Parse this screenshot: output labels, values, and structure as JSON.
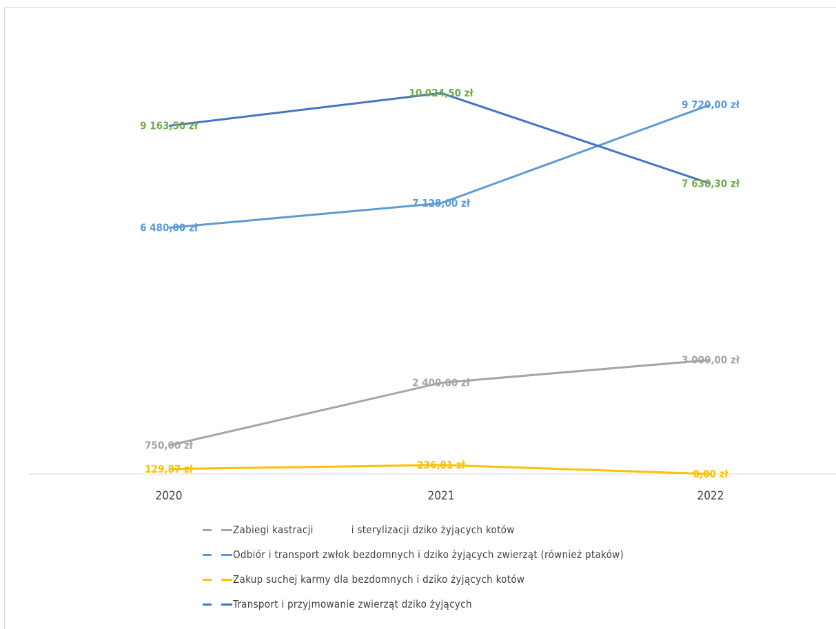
{
  "chart_data": {
    "type": "line",
    "categories": [
      "2020",
      "2021",
      "2022"
    ],
    "ylim": [
      0,
      12000
    ],
    "grid": false,
    "legend_position": "bottom",
    "series": [
      {
        "name": "Zabiegi kastracji            i sterylizacji dziko żyjących kotów",
        "values": [
          750.0,
          2400.0,
          3000.0
        ],
        "labels": [
          "750,00 zł",
          "2 400,00 zł",
          "3 000,00 zł"
        ],
        "color": "#a5a5a5",
        "label_color": "#a5a5a5"
      },
      {
        "name": "Odbiór i transport zwłok bezdomnych i dziko żyjących zwierząt (również ptaków)",
        "values": [
          6480.0,
          7128.0,
          9720.0
        ],
        "labels": [
          "6 480,00 zł",
          "7 128,00 zł",
          "9 720,00 zł"
        ],
        "color": "#5b9bd5",
        "label_color": "#5b9bd5"
      },
      {
        "name": "Zakup suchej karmy dla bezdomnych i dziko żyjących kotów",
        "values": [
          129.87,
          236.81,
          0.0
        ],
        "labels": [
          "129,87 zł",
          "236,81 zł",
          "0,00 zł"
        ],
        "color": "#ffc000",
        "label_color": "#ffc000"
      },
      {
        "name": "Transport i przyjmowanie zwierząt dziko żyjących",
        "values": [
          9163.5,
          10024.5,
          7638.3
        ],
        "labels": [
          "9 163,50 zł",
          "10 024,50 zł",
          "7 638,30 zł"
        ],
        "color": "#4472c4",
        "label_color": "#70ad47"
      }
    ]
  }
}
